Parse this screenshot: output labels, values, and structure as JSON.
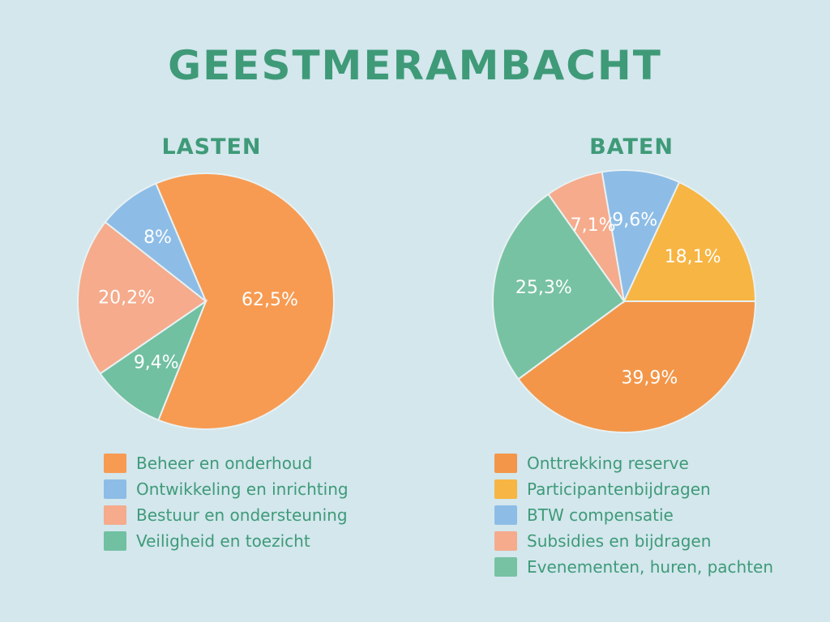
{
  "title": "GEESTMERAMBACHT",
  "chart_data": [
    {
      "type": "pie",
      "title": "LASTEN",
      "slices": [
        {
          "name": "Beheer en onderhoud",
          "value": 62.5,
          "label": "62,5%",
          "color": "#f79b52"
        },
        {
          "name": "Veiligheid en toezicht",
          "value": 9.4,
          "label": "9,4%",
          "color": "#71c0a1"
        },
        {
          "name": "Bestuur en ondersteuning",
          "value": 20.2,
          "label": "20,2%",
          "color": "#f5ab8c"
        },
        {
          "name": "Ontwikkeling en inrichting",
          "value": 8.0,
          "label": "8%",
          "color": "#8dbde6"
        }
      ],
      "legend": [
        {
          "label": "Beheer en onderhoud",
          "color": "#f79b52"
        },
        {
          "label": "Ontwikkeling en inrichting",
          "color": "#8dbde6"
        },
        {
          "label": "Bestuur en ondersteuning",
          "color": "#f5ab8c"
        },
        {
          "label": "Veiligheid en toezicht",
          "color": "#71c0a1"
        }
      ],
      "legend_position": "bottom"
    },
    {
      "type": "pie",
      "title": "BATEN",
      "slices": [
        {
          "name": "Onttrekking reserve",
          "value": 39.9,
          "label": "39,9%",
          "color": "#f39649"
        },
        {
          "name": "Evenementen, huren, pachten",
          "value": 25.3,
          "label": "25,3%",
          "color": "#77c2a2"
        },
        {
          "name": "Subsidies en bijdragen",
          "value": 7.1,
          "label": "7,1%",
          "color": "#f5ab8c"
        },
        {
          "name": "BTW compensatie",
          "value": 9.6,
          "label": "9,6%",
          "color": "#8dbde6"
        },
        {
          "name": "Participantenbijdragen",
          "value": 18.1,
          "label": "18,1%",
          "color": "#f7b543"
        }
      ],
      "legend": [
        {
          "label": "Onttrekking reserve",
          "color": "#f39649"
        },
        {
          "label": "Participantenbijdragen",
          "color": "#f7b543"
        },
        {
          "label": "BTW compensatie",
          "color": "#8dbde6"
        },
        {
          "label": "Subsidies en bijdragen",
          "color": "#f5ab8c"
        },
        {
          "label": "Evenementen, huren, pachten",
          "color": "#77c2a2"
        }
      ],
      "legend_position": "bottom"
    }
  ],
  "colors": {
    "title": "#3f9a78",
    "background": "#d3e7ed",
    "slice_label": "#ffffff"
  }
}
